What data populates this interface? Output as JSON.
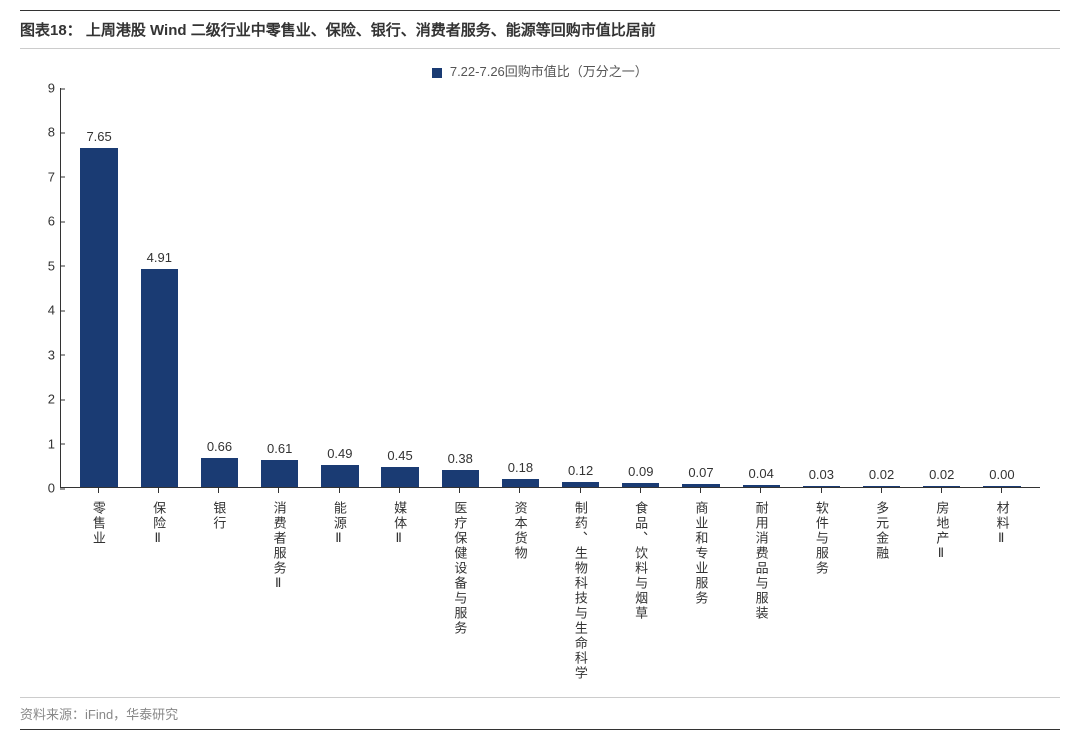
{
  "title_prefix": "图表18：",
  "title_text": "上周港股 Wind 二级行业中零售业、保险、银行、消费者服务、能源等回购市值比居前",
  "legend_label": "7.22-7.26回购市值比（万分之一）",
  "source": "资料来源：iFind，华泰研究",
  "chart": {
    "type": "bar",
    "y_max": 9,
    "y_min": 0,
    "y_step": 1,
    "bar_color": "#1a3b73",
    "background_color": "#ffffff",
    "axis_color": "#333333",
    "label_fontsize": 13,
    "title_fontsize": 15,
    "categories": [
      "零售业",
      "保险Ⅱ",
      "银行",
      "消费者服务Ⅱ",
      "能源Ⅱ",
      "媒体Ⅱ",
      "医疗保健设备与服务",
      "资本货物",
      "制药、生物科技与生命科学",
      "食品、饮料与烟草",
      "商业和专业服务",
      "耐用消费品与服装",
      "软件与服务",
      "多元金融",
      "房地产Ⅱ",
      "材料Ⅱ"
    ],
    "values": [
      7.65,
      4.91,
      0.66,
      0.61,
      0.49,
      0.45,
      0.38,
      0.18,
      0.12,
      0.09,
      0.07,
      0.04,
      0.03,
      0.02,
      0.02,
      0.0
    ],
    "value_labels": [
      "7.65",
      "4.91",
      "0.66",
      "0.61",
      "0.49",
      "0.45",
      "0.38",
      "0.18",
      "0.12",
      "0.09",
      "0.07",
      "0.04",
      "0.03",
      "0.02",
      "0.02",
      "0.00"
    ]
  }
}
